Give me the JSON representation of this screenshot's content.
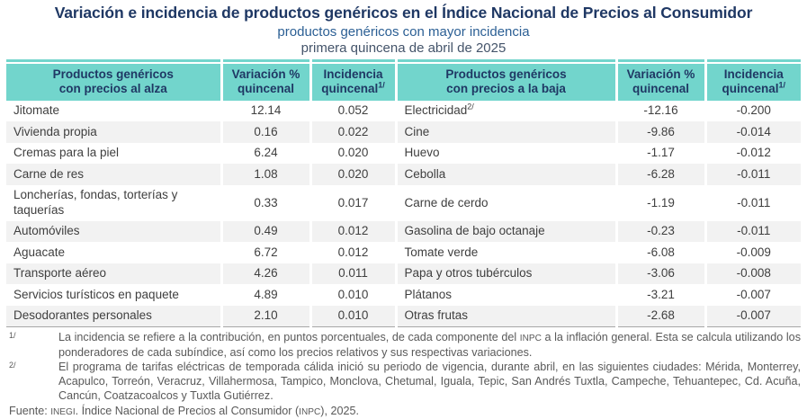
{
  "title": "Variación e incidencia de productos genéricos en el Índice Nacional de Precios al Consumidor",
  "subtitle": "productos genéricos con mayor incidencia",
  "period": "primera quincena de abril de 2025",
  "colors": {
    "header_bg": "#72D5CC",
    "title_navy": "#1F3864",
    "subtitle_blue": "#2B5F94",
    "period_gray": "#44546A",
    "body_text": "#3F3F3F",
    "footnote_gray": "#595959",
    "row_alt": "#F2F2F2",
    "bottom_rule": "#A6A6A6"
  },
  "table": {
    "headers": [
      {
        "line1": "Productos genéricos",
        "line2": "con precios al alza",
        "sup": ""
      },
      {
        "line1": "Variación %",
        "line2": "quincenal",
        "sup": ""
      },
      {
        "line1": "Incidencia",
        "line2": "quincenal",
        "sup": "1/"
      },
      {
        "line1": "Productos genéricos",
        "line2": "con precios a la baja",
        "sup": ""
      },
      {
        "line1": "Variación %",
        "line2": "quincenal",
        "sup": ""
      },
      {
        "line1": "Incidencia",
        "line2": "quincenal",
        "sup": "1/"
      }
    ],
    "rows": [
      {
        "up_name": "Jitomate",
        "up_sup": "",
        "up_var": "12.14",
        "up_inc": "0.052",
        "down_name": "Electricidad",
        "down_sup": "2/",
        "down_var": "-12.16",
        "down_inc": "-0.200"
      },
      {
        "up_name": "Vivienda propia",
        "up_sup": "",
        "up_var": "0.16",
        "up_inc": "0.022",
        "down_name": "Cine",
        "down_sup": "",
        "down_var": "-9.86",
        "down_inc": "-0.014"
      },
      {
        "up_name": "Cremas para la piel",
        "up_sup": "",
        "up_var": "6.24",
        "up_inc": "0.020",
        "down_name": "Huevo",
        "down_sup": "",
        "down_var": "-1.17",
        "down_inc": "-0.012"
      },
      {
        "up_name": "Carne de res",
        "up_sup": "",
        "up_var": "1.08",
        "up_inc": "0.020",
        "down_name": "Cebolla",
        "down_sup": "",
        "down_var": "-6.28",
        "down_inc": "-0.011"
      },
      {
        "up_name": "Loncherías, fondas, torterías y taquerías",
        "up_sup": "",
        "up_var": "0.33",
        "up_inc": "0.017",
        "down_name": "Carne de cerdo",
        "down_sup": "",
        "down_var": "-1.19",
        "down_inc": "-0.011"
      },
      {
        "up_name": "Automóviles",
        "up_sup": "",
        "up_var": "0.49",
        "up_inc": "0.012",
        "down_name": "Gasolina de bajo octanaje",
        "down_sup": "",
        "down_var": "-0.23",
        "down_inc": "-0.011"
      },
      {
        "up_name": "Aguacate",
        "up_sup": "",
        "up_var": "6.72",
        "up_inc": "0.012",
        "down_name": "Tomate verde",
        "down_sup": "",
        "down_var": "-6.08",
        "down_inc": "-0.009"
      },
      {
        "up_name": "Transporte aéreo",
        "up_sup": "",
        "up_var": "4.26",
        "up_inc": "0.011",
        "down_name": "Papa y otros tubérculos",
        "down_sup": "",
        "down_var": "-3.06",
        "down_inc": "-0.008"
      },
      {
        "up_name": "Servicios turísticos en paquete",
        "up_sup": "",
        "up_var": "4.89",
        "up_inc": "0.010",
        "down_name": "Plátanos",
        "down_sup": "",
        "down_var": "-3.21",
        "down_inc": "-0.007"
      },
      {
        "up_name": "Desodorantes personales",
        "up_sup": "",
        "up_var": "2.10",
        "up_inc": "0.010",
        "down_name": "Otras frutas",
        "down_sup": "",
        "down_var": "-2.68",
        "down_inc": "-0.007"
      }
    ]
  },
  "footnotes": [
    {
      "marker": "1/",
      "text": "La incidencia se refiere a la contribución, en puntos porcentuales, de cada componente del INPC a la inflación general. Esta se calcula utilizando los ponderadores de cada subíndice, así como los precios relativos y sus respectivas variaciones."
    },
    {
      "marker": "2/",
      "text": "El programa de tarifas eléctricas de temporada cálida inició su periodo de vigencia, durante abril, en las siguientes ciudades: Mérida, Monterrey, Acapulco, Torreón, Veracruz, Villahermosa, Tampico, Monclova, Chetumal, Iguala, Tepic, San Andrés Tuxtla, Campeche, Tehuantepec, Cd. Acuña, Cancún, Coatzacoalcos y Tuxtla Gutiérrez."
    }
  ],
  "source": "Fuente: INEGI. Índice Nacional de Precios al Consumidor (INPC), 2025."
}
